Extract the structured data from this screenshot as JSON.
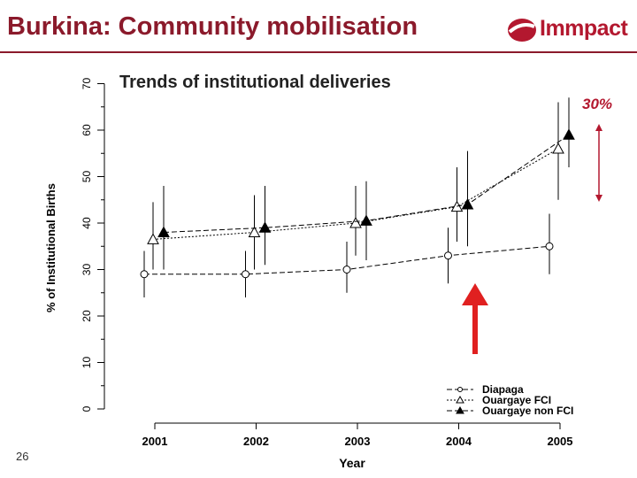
{
  "slide": {
    "title": "Burkina: Community mobilisation",
    "logo_text": "Immpact",
    "page_number": "26",
    "annotation": "30%"
  },
  "colors": {
    "title": "#8b1a2b",
    "accent": "#b3182f",
    "arrow": "#e02020"
  },
  "chart_data": {
    "type": "line",
    "title": "Trends of institutional deliveries",
    "xlabel": "Year",
    "ylabel": "% of Institutional Births",
    "categories": [
      "2001",
      "2002",
      "2003",
      "2004",
      "2005"
    ],
    "yticks": [
      "0",
      "10",
      "20",
      "30",
      "40",
      "50",
      "60",
      "70"
    ],
    "ylim": [
      0,
      70
    ],
    "series": [
      {
        "name": "Diapaga",
        "marker": "circle",
        "dash": "dashed",
        "values": [
          29,
          29,
          30,
          33,
          35
        ],
        "ci_low": [
          24,
          24,
          25,
          27,
          29
        ],
        "ci_high": [
          34,
          34,
          36,
          39,
          42
        ]
      },
      {
        "name": "Ouargaye FCI",
        "marker": "triangle-open",
        "dash": "dotted",
        "values": [
          36.5,
          38,
          40,
          43.5,
          56
        ],
        "ci_low": [
          30,
          30,
          33,
          36,
          45
        ],
        "ci_high": [
          44.5,
          46,
          48,
          52,
          66
        ]
      },
      {
        "name": "Ouargaye non FCI",
        "marker": "triangle-filled",
        "dash": "dashed",
        "values": [
          38,
          39,
          40.5,
          44,
          59
        ],
        "ci_low": [
          30,
          31,
          32,
          35,
          52
        ],
        "ci_high": [
          48,
          48,
          49,
          55.5,
          67
        ]
      }
    ],
    "legend_position": "bottom-right"
  }
}
